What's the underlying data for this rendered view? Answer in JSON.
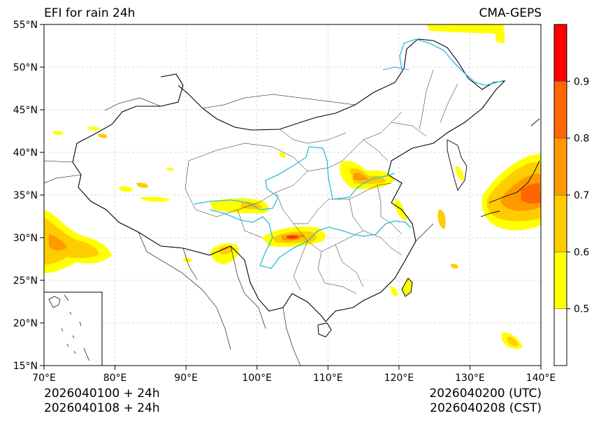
{
  "title_left": "EFI for rain 24h",
  "title_right": "CMA-GEPS",
  "footer": {
    "init_utc": "2026040100 + 24h",
    "init_cst": "2026040108 + 24h",
    "valid_utc": "2026040200 (UTC)",
    "valid_cst": "2026040208 (CST)"
  },
  "axes": {
    "lon_ticks": [
      "70°E",
      "80°E",
      "90°E",
      "100°E",
      "110°E",
      "120°E",
      "130°E",
      "140°E"
    ],
    "lat_ticks": [
      "55°N",
      "50°N",
      "45°N",
      "40°N",
      "35°N",
      "30°N",
      "25°N",
      "20°N",
      "15°N"
    ],
    "lon_range": [
      70,
      140
    ],
    "lat_range": [
      15,
      55
    ],
    "grid": true
  },
  "colorbar": {
    "levels": [
      0.5,
      0.6,
      0.7,
      0.8,
      0.9
    ],
    "tick_labels": [
      "0.5",
      "0.6",
      "0.7",
      "0.8",
      "0.9"
    ],
    "colors": [
      "#ffffff",
      "#ffff00",
      "#ffcc00",
      "#ff9900",
      "#ff6600",
      "#ff0000"
    ]
  },
  "colors": {
    "river": "#29bcd9",
    "border": "#000000",
    "grid": "#cccccc"
  }
}
